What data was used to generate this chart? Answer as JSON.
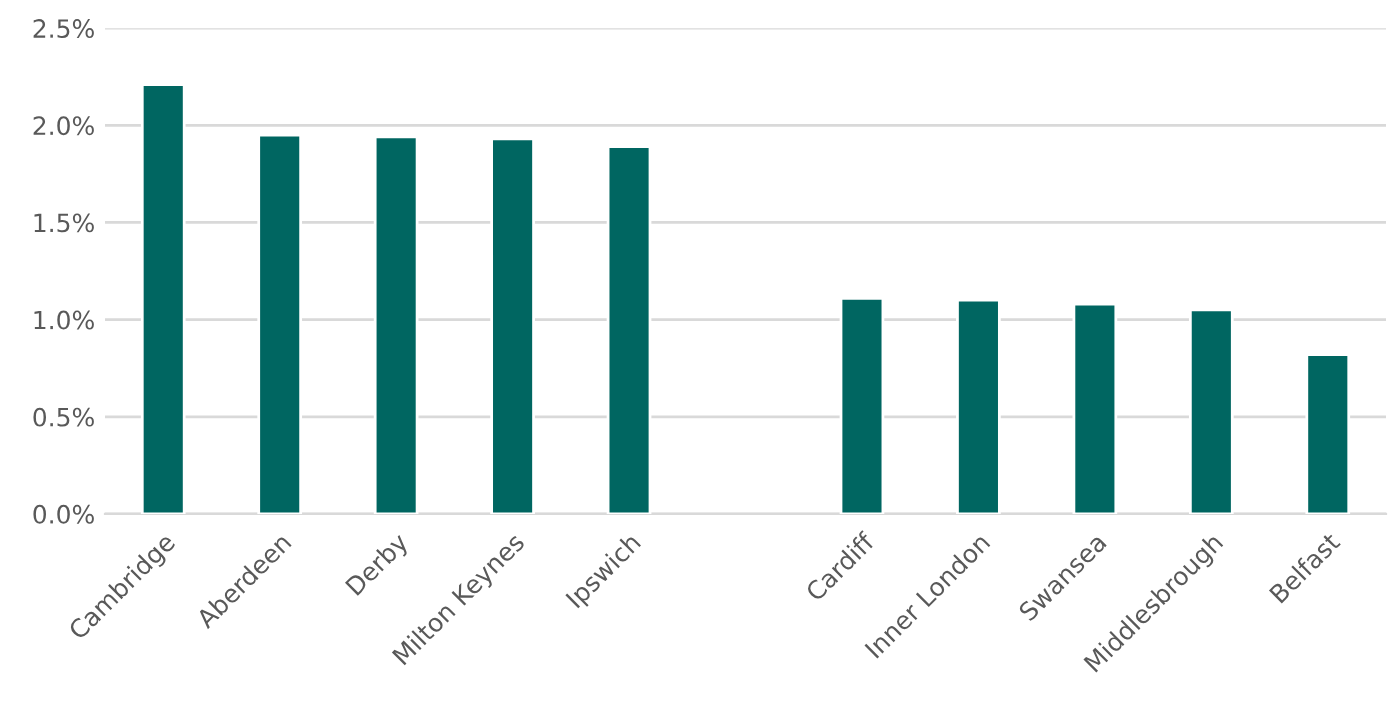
{
  "chart_data": {
    "type": "bar",
    "categories": [
      "Cambridge",
      "Aberdeen",
      "Derby",
      "Milton Keynes",
      "Ipswich",
      null,
      "Cardiff",
      "Inner London",
      "Swansea",
      "Middlesbrough",
      "Belfast"
    ],
    "series": [
      {
        "color": "#006661",
        "values": [
          2.21,
          1.95,
          1.94,
          1.93,
          1.89,
          null,
          1.11,
          1.1,
          1.08,
          1.05,
          0.82
        ]
      }
    ],
    "ylim": [
      0,
      2.5
    ],
    "yticks": [
      {
        "value": 0,
        "label": "0.0%"
      },
      {
        "value": 0.5,
        "label": "0.5%"
      },
      {
        "value": 1.0,
        "label": "1.0%"
      },
      {
        "value": 1.5,
        "label": "1.5%"
      },
      {
        "value": 2.0,
        "label": "2.0%"
      },
      {
        "value": 2.5,
        "label": "2.5%"
      }
    ],
    "grid": "y"
  }
}
